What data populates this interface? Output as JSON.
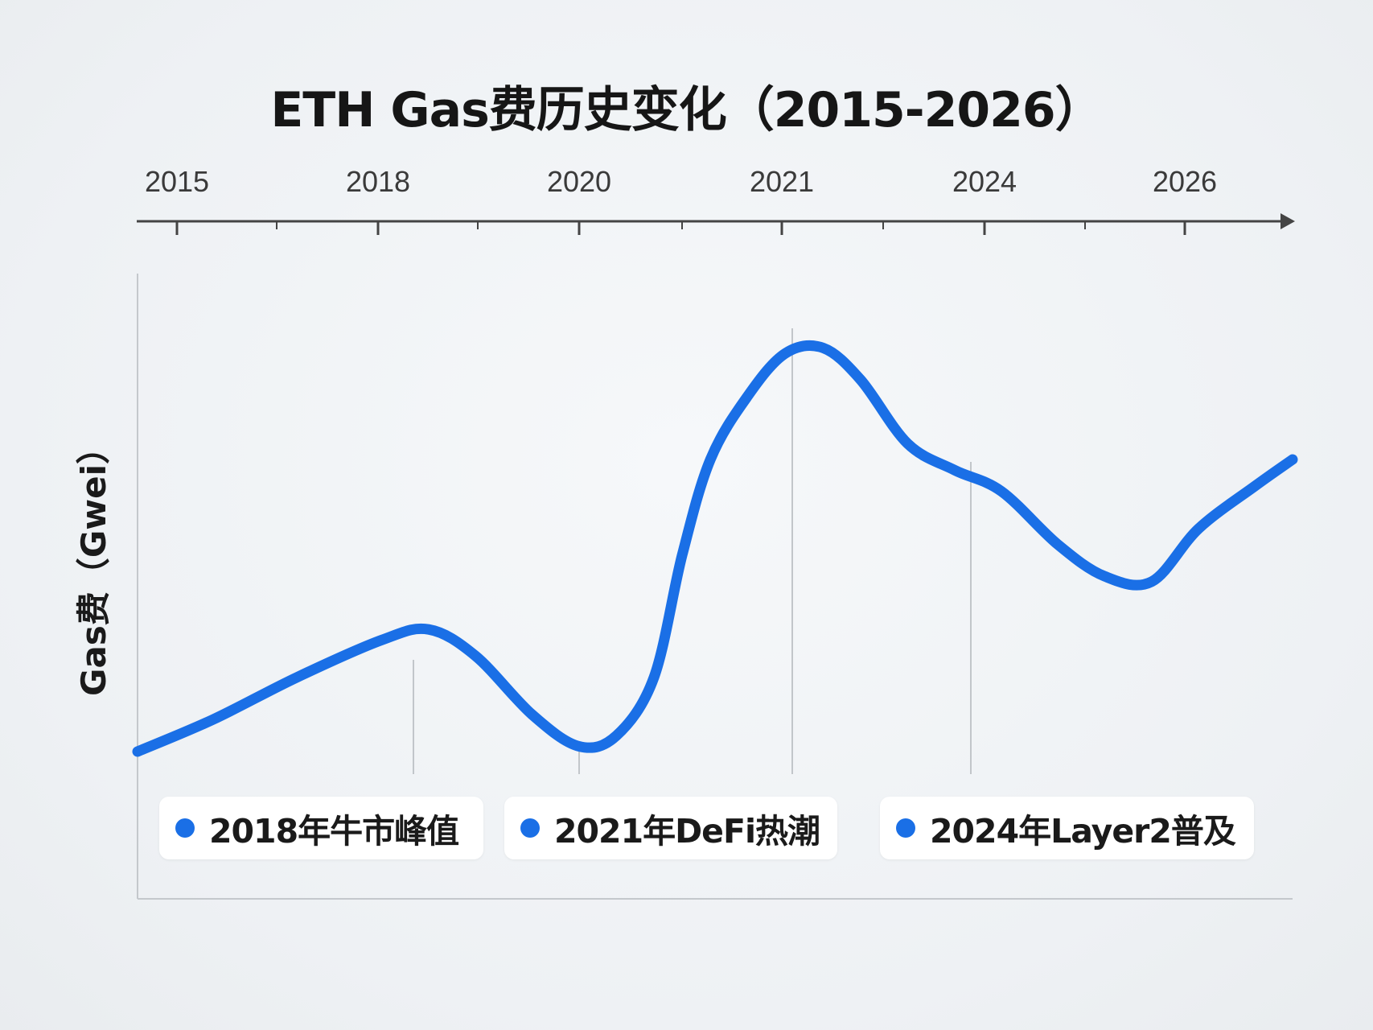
{
  "chart_data": {
    "type": "line",
    "title": "ETH Gas费历史变化（2015-2026）",
    "xlabel": "",
    "ylabel": "Gas费（Gwei）",
    "x_tick_labels": [
      "2015",
      "2018",
      "2020",
      "2021",
      "2024",
      "2026"
    ],
    "x_tick_positions": [
      2015,
      2018,
      2020,
      2021,
      2024,
      2026
    ],
    "y_range": [
      0,
      100
    ],
    "y_ticks_shown": false,
    "grid": false,
    "legend": "none",
    "series": [
      {
        "color": "#1a6fe6",
        "points": [
          {
            "x": 2015.0,
            "y": 10
          },
          {
            "x": 2015.8,
            "y": 16
          },
          {
            "x": 2016.7,
            "y": 24
          },
          {
            "x": 2017.6,
            "y": 31
          },
          {
            "x": 2018.1,
            "y": 33
          },
          {
            "x": 2018.6,
            "y": 28
          },
          {
            "x": 2019.2,
            "y": 17
          },
          {
            "x": 2019.7,
            "y": 11
          },
          {
            "x": 2020.1,
            "y": 13
          },
          {
            "x": 2020.5,
            "y": 24
          },
          {
            "x": 2020.8,
            "y": 47
          },
          {
            "x": 2021.1,
            "y": 65
          },
          {
            "x": 2021.5,
            "y": 77
          },
          {
            "x": 2021.9,
            "y": 85
          },
          {
            "x": 2022.3,
            "y": 86
          },
          {
            "x": 2022.7,
            "y": 80
          },
          {
            "x": 2023.2,
            "y": 68
          },
          {
            "x": 2023.7,
            "y": 63
          },
          {
            "x": 2024.2,
            "y": 59
          },
          {
            "x": 2024.8,
            "y": 49
          },
          {
            "x": 2025.3,
            "y": 43
          },
          {
            "x": 2025.8,
            "y": 42
          },
          {
            "x": 2026.3,
            "y": 52
          },
          {
            "x": 2026.9,
            "y": 60
          },
          {
            "x": 2027.3,
            "y": 65
          }
        ]
      }
    ],
    "annotations": [
      {
        "x": 2018.3,
        "text": "2018年牛市峰值"
      },
      {
        "x": 2020.0,
        "text": "2021年DeFi热潮"
      },
      {
        "x": 2022.1,
        "text": "2024年Layer2普及"
      },
      {
        "x": 2023.9,
        "text": ""
      }
    ],
    "line_color": "#1a6fe6",
    "axis_color": "#444444"
  }
}
